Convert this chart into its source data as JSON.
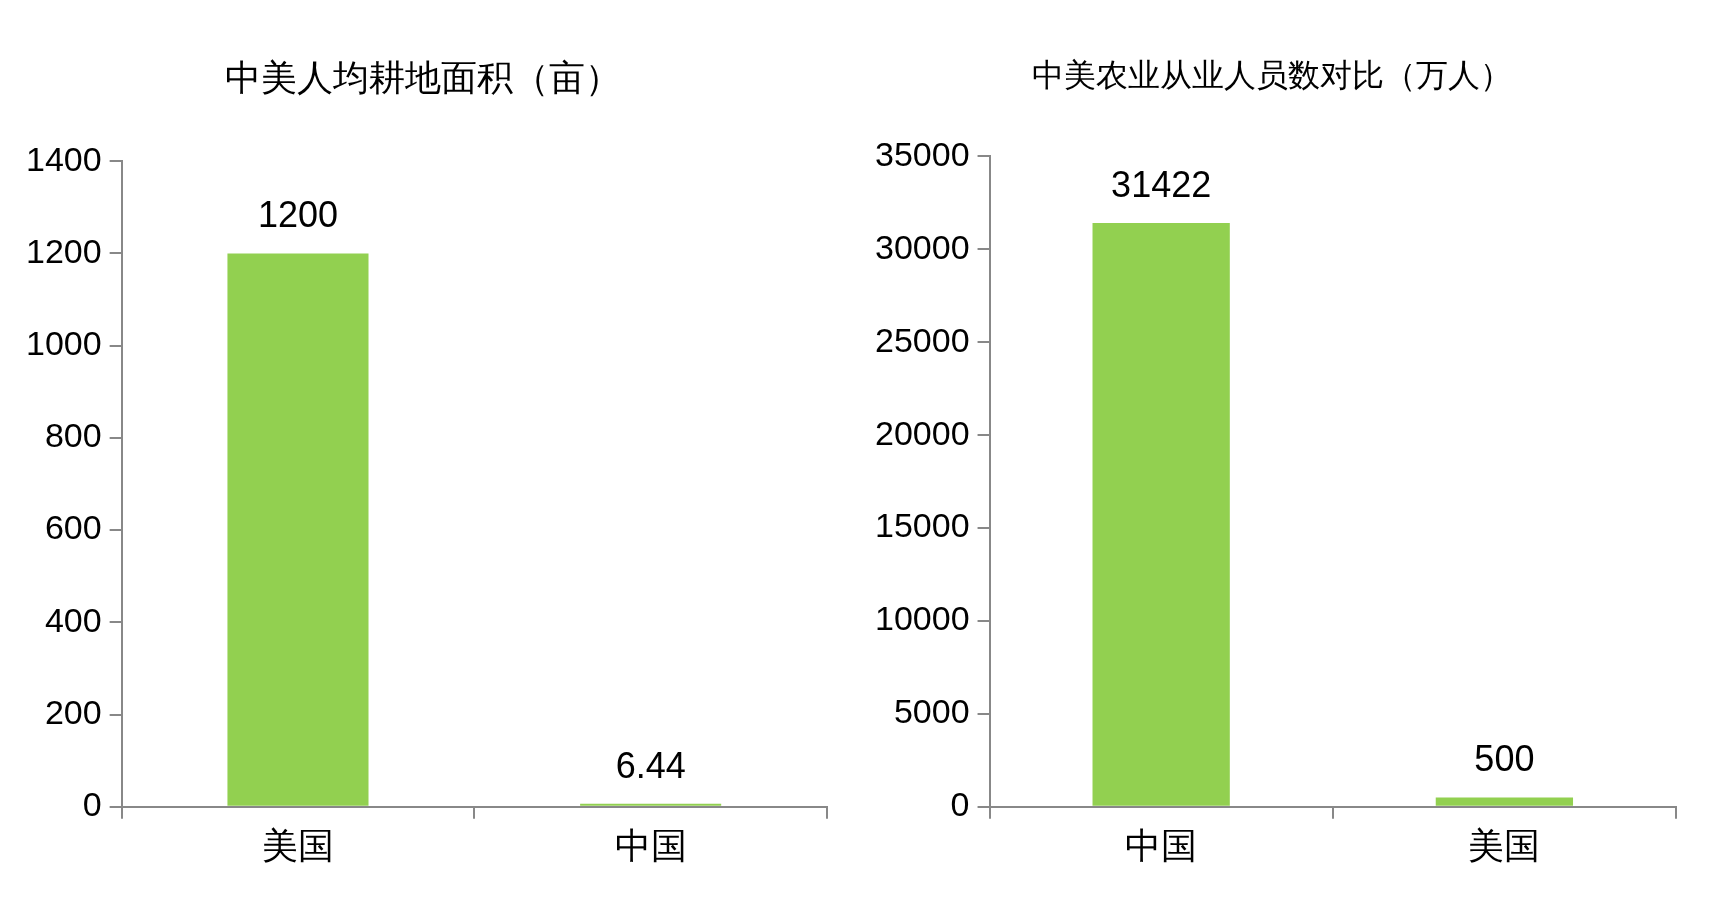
{
  "chart_data": [
    {
      "type": "bar",
      "title": "中美人均耕地面积（亩）",
      "categories": [
        "美国",
        "中国"
      ],
      "values": [
        1200,
        6.44
      ],
      "color": "#92d050",
      "ylim": [
        0,
        1400
      ],
      "yticks": [
        0,
        200,
        400,
        600,
        800,
        1000,
        1200,
        1400
      ],
      "data_labels": true,
      "grid": false,
      "legend": false
    },
    {
      "type": "bar",
      "title": "中美农业从业人员数对比（万人）",
      "categories": [
        "中国",
        "美国"
      ],
      "values": [
        31422,
        500
      ],
      "color": "#92d050",
      "ylim": [
        0,
        35000
      ],
      "yticks": [
        0,
        5000,
        10000,
        15000,
        20000,
        25000,
        30000,
        35000
      ],
      "data_labels": true,
      "grid": false,
      "legend": false
    }
  ]
}
